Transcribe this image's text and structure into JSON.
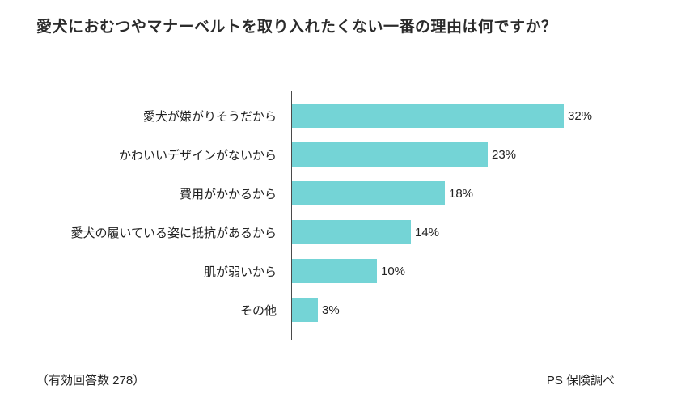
{
  "title": "愛犬におむつやマナーベルトを取り入れたくない一番の理由は何ですか？",
  "footer": {
    "left": "（有効回答数 278）",
    "right": "PS 保険調べ"
  },
  "colors": {
    "bar": "#74d4d6",
    "text": "#222222",
    "axis": "#4a4a4a",
    "background": "#ffffff"
  },
  "chart_data": {
    "type": "bar",
    "orientation": "horizontal",
    "title": "愛犬におむつやマナーベルトを取り入れたくない一番の理由は何ですか？",
    "categories": [
      "愛犬が嫌がりそうだから",
      "かわいいデザインがないから",
      "費用がかかるから",
      "愛犬の履いている姿に抵抗があるから",
      "肌が弱いから",
      "その他"
    ],
    "values": [
      32,
      23,
      18,
      14,
      10,
      3
    ],
    "value_labels": [
      "32%",
      "23%",
      "18%",
      "14%",
      "10%",
      "3%"
    ],
    "xlabel": "",
    "ylabel": "",
    "xlim": [
      0,
      34
    ],
    "grid": false,
    "legend": false,
    "annotations": [
      "（有効回答数 278）",
      "PS 保険調べ"
    ]
  }
}
